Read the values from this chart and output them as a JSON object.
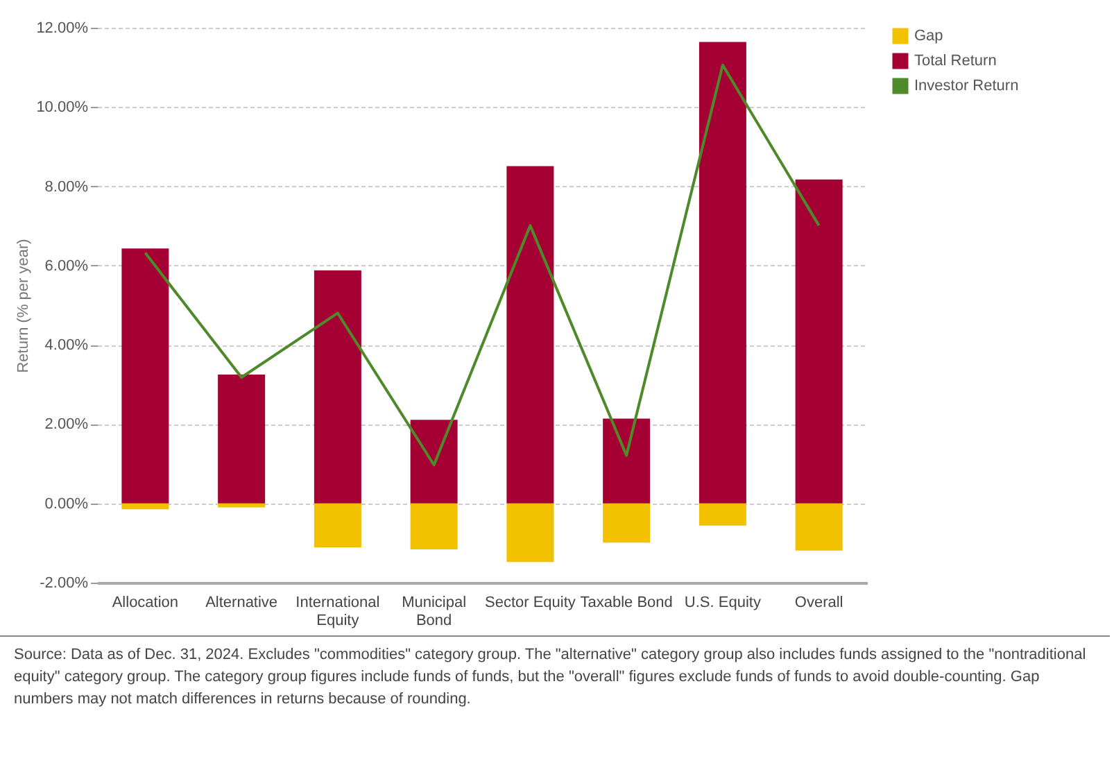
{
  "chart_data": {
    "type": "bar",
    "ylabel": "Return (% per year)",
    "categories": [
      "Allocation",
      "Alternative",
      "International Equity",
      "Municipal Bond",
      "Sector Equity",
      "Taxable Bond",
      "U.S. Equity",
      "Overall"
    ],
    "series": [
      {
        "name": "Gap",
        "color": "#f2c200",
        "values": [
          -0.15,
          -0.1,
          -1.11,
          -1.16,
          -1.48,
          -0.99,
          -0.56,
          -1.19
        ]
      },
      {
        "name": "Total Return",
        "color": "#a50034",
        "values": [
          6.43,
          3.25,
          5.88,
          2.11,
          8.51,
          2.14,
          11.64,
          8.17
        ]
      },
      {
        "name": "Investor Return",
        "type": "line",
        "line_style": "solid",
        "color": "#4e8a2a",
        "values": [
          6.32,
          3.18,
          4.8,
          0.97,
          7.01,
          1.21,
          11.06,
          7.01
        ]
      }
    ],
    "ylim": [
      -2,
      12
    ],
    "yticks": [
      {
        "value": -2,
        "label": "-2.00%"
      },
      {
        "value": 0,
        "label": "0.00%"
      },
      {
        "value": 2,
        "label": "2.00%"
      },
      {
        "value": 4,
        "label": "4.00%"
      },
      {
        "value": 6,
        "label": "6.00%"
      },
      {
        "value": 8,
        "label": "8.00%"
      },
      {
        "value": 10,
        "label": "10.00%"
      },
      {
        "value": 12,
        "label": "12.00%"
      }
    ],
    "grid": "y",
    "legend": "top right",
    "stacked": true,
    "annotations": [
      "Source: Data as of Dec. 31, 2024. Excludes \"commodities\" category group. The \"alternative\" category group also includes funds assigned to the \"nontraditional equity\" category group. The category group figures include funds of funds, but the \"overall\" figures exclude funds of funds to avoid double-counting. Gap numbers may not match differences in returns because of rounding."
    ]
  }
}
